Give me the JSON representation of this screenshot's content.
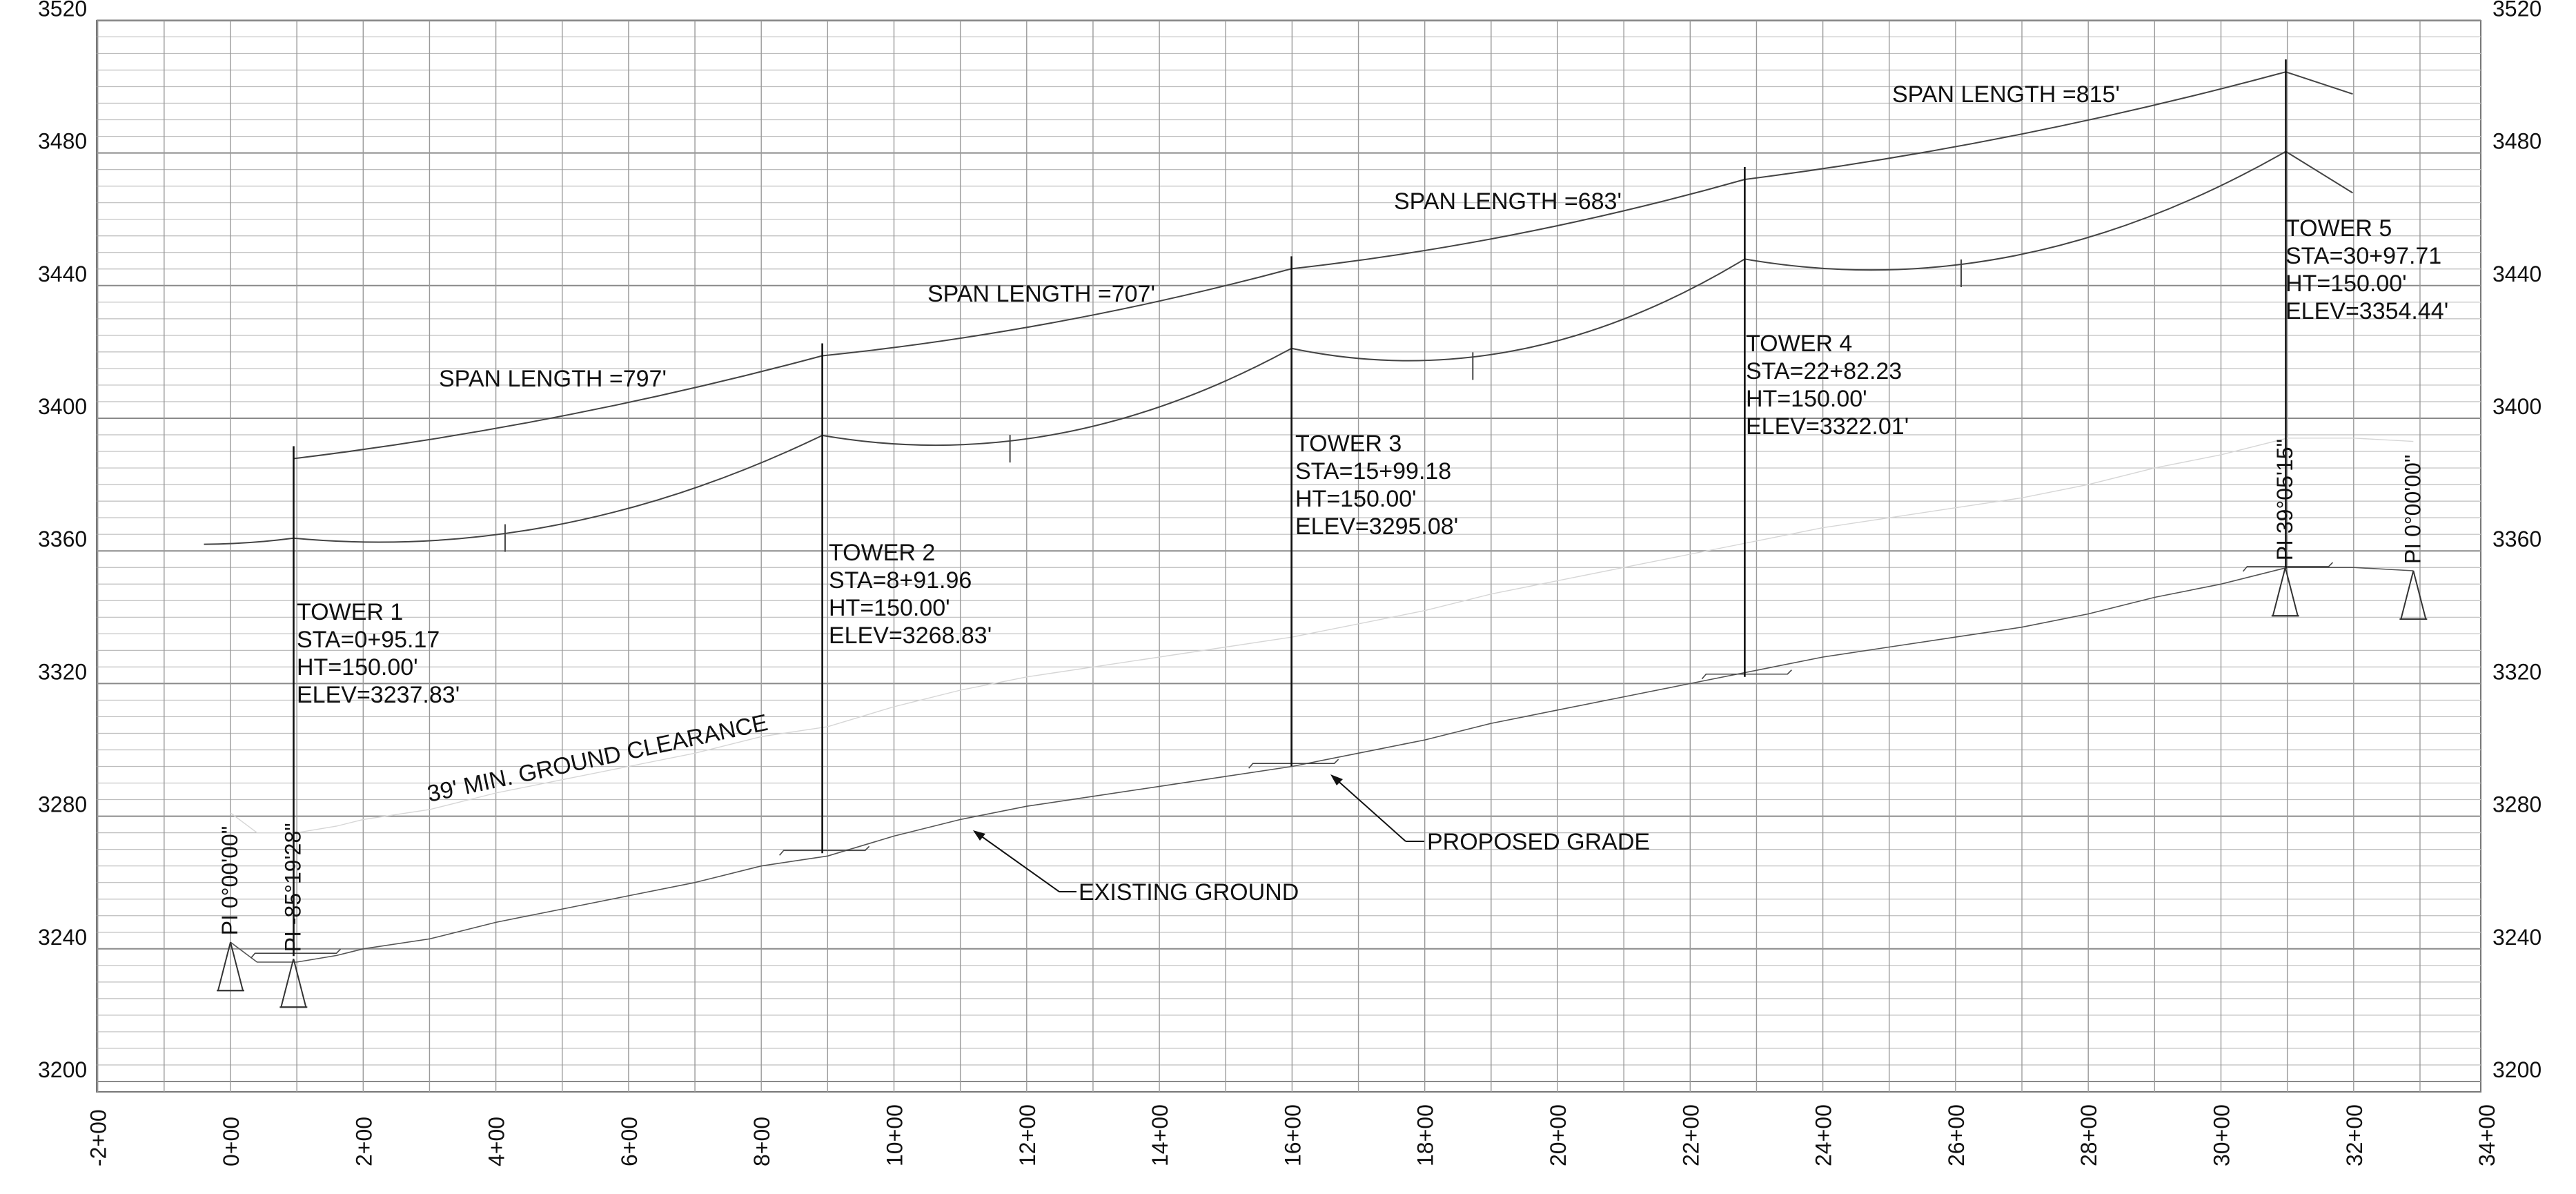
{
  "chart_data": {
    "type": "profile",
    "y_ticks_left": [
      "3200",
      "3240",
      "3280",
      "3320",
      "3360",
      "3400",
      "3440",
      "3480",
      "3520"
    ],
    "y_ticks_right": [
      "3200",
      "3240",
      "3280",
      "3320",
      "3360",
      "3400",
      "3440",
      "3480",
      "3520"
    ],
    "x_ticks": [
      "-2+00",
      "0+00",
      "2+00",
      "4+00",
      "6+00",
      "8+00",
      "10+00",
      "12+00",
      "14+00",
      "16+00",
      "18+00",
      "20+00",
      "22+00",
      "24+00",
      "26+00",
      "28+00",
      "30+00",
      "32+00",
      "34+00"
    ],
    "ylim": [
      3200,
      3520
    ],
    "xlim_station_ft": [
      -300,
      3450
    ],
    "grid": true,
    "towers": [
      {
        "label": "TOWER 1",
        "sta": "STA=0+95.17",
        "ht": "HT=150.00'",
        "elev": "ELEV=3237.83'",
        "station_ft": 95.17,
        "ground": 3237.83,
        "height": 150
      },
      {
        "label": "TOWER 2",
        "sta": "STA=8+91.96",
        "ht": "HT=150.00'",
        "elev": "ELEV=3268.83'",
        "station_ft": 891.96,
        "ground": 3268.83,
        "height": 150
      },
      {
        "label": "TOWER 3",
        "sta": "STA=15+99.18",
        "ht": "HT=150.00'",
        "elev": "ELEV=3295.08'",
        "station_ft": 1599.18,
        "ground": 3295.08,
        "height": 150
      },
      {
        "label": "TOWER 4",
        "sta": "STA=22+82.23",
        "ht": "HT=150.00'",
        "elev": "ELEV=3322.01'",
        "station_ft": 2282.23,
        "ground": 3322.01,
        "height": 150
      },
      {
        "label": "TOWER 5",
        "sta": "STA=30+97.71",
        "ht": "HT=150.00'",
        "elev": "ELEV=3354.44'",
        "station_ft": 3097.71,
        "ground": 3354.44,
        "height": 150
      }
    ],
    "spans": [
      {
        "label": "SPAN LENGTH =797'"
      },
      {
        "label": "SPAN LENGTH =707'"
      },
      {
        "label": "SPAN LENGTH =683'"
      },
      {
        "label": "SPAN LENGTH =815'"
      }
    ],
    "pi_points": [
      {
        "label": "PI 0°00'00\"",
        "station_ft": 0,
        "elev": 3242
      },
      {
        "label": "PI -85°19'28\"",
        "station_ft": 95,
        "elev": 3237
      },
      {
        "label": "PI 39°05'15\"",
        "station_ft": 3097,
        "elev": 3355
      },
      {
        "label": "PI 0°00'00\"",
        "station_ft": 3290,
        "elev": 3354
      }
    ],
    "annotations": {
      "clearance": "39' MIN. GROUND CLEARANCE",
      "existing_ground": "EXISTING GROUND",
      "proposed_grade": "PROPOSED GRADE"
    },
    "existing_ground_profile": [
      [
        0,
        3242
      ],
      [
        40,
        3236
      ],
      [
        100,
        3236
      ],
      [
        160,
        3238
      ],
      [
        200,
        3240
      ],
      [
        300,
        3243
      ],
      [
        400,
        3248
      ],
      [
        500,
        3252
      ],
      [
        600,
        3256
      ],
      [
        700,
        3260
      ],
      [
        800,
        3265
      ],
      [
        900,
        3268
      ],
      [
        1000,
        3274
      ],
      [
        1100,
        3279
      ],
      [
        1200,
        3283
      ],
      [
        1300,
        3286
      ],
      [
        1400,
        3289
      ],
      [
        1500,
        3292
      ],
      [
        1600,
        3295
      ],
      [
        1700,
        3299
      ],
      [
        1800,
        3303
      ],
      [
        1900,
        3308
      ],
      [
        2000,
        3312
      ],
      [
        2100,
        3316
      ],
      [
        2200,
        3320
      ],
      [
        2300,
        3324
      ],
      [
        2400,
        3328
      ],
      [
        2500,
        3331
      ],
      [
        2600,
        3334
      ],
      [
        2700,
        3337
      ],
      [
        2800,
        3341
      ],
      [
        2900,
        3346
      ],
      [
        3000,
        3350
      ],
      [
        3100,
        3355
      ],
      [
        3200,
        3355
      ],
      [
        3290,
        3354
      ]
    ]
  }
}
